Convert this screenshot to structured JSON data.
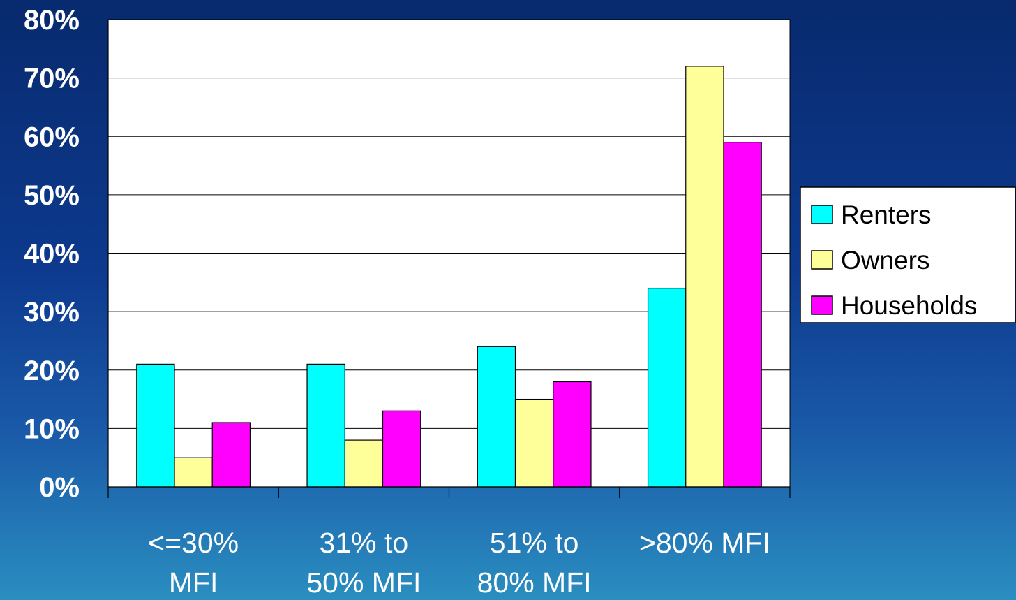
{
  "chart_data": {
    "type": "bar",
    "categories": [
      [
        "<=30%",
        "MFI"
      ],
      [
        "31% to",
        "50% MFI"
      ],
      [
        "51% to",
        "80% MFI"
      ],
      [
        ">80% MFI"
      ]
    ],
    "series": [
      {
        "name": "Renters",
        "color": "#00ffff",
        "values": [
          21,
          21,
          24,
          34
        ]
      },
      {
        "name": "Owners",
        "color": "#ffff99",
        "values": [
          5,
          8,
          15,
          72
        ]
      },
      {
        "name": "Households",
        "color": "#ff00ff",
        "values": [
          11,
          13,
          18,
          59
        ]
      }
    ],
    "yticks": [
      "0%",
      "10%",
      "20%",
      "30%",
      "40%",
      "50%",
      "60%",
      "70%",
      "80%"
    ],
    "ylim": [
      0,
      80
    ],
    "grid": true,
    "legend": "right",
    "plot_background": "#ffffff"
  }
}
